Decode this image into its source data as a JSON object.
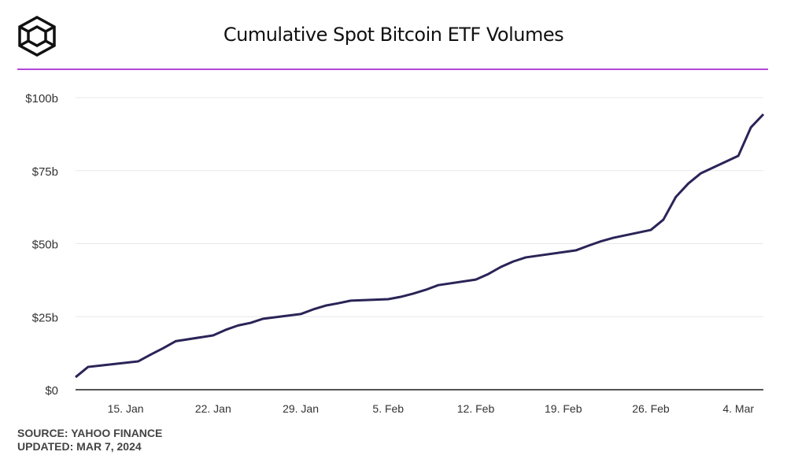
{
  "header": {
    "title": "Cumulative Spot Bitcoin ETF Volumes"
  },
  "footer": {
    "source": "SOURCE: YAHOO FINANCE",
    "updated": "UPDATED: MAR 7, 2024"
  },
  "colors": {
    "line": "#2a2457",
    "accent_rule": "#b347d9",
    "grid": "#e8e8e8"
  },
  "chart_data": {
    "type": "line",
    "title": "Cumulative Spot Bitcoin ETF Volumes",
    "xlabel": "",
    "ylabel": "",
    "ylim": [
      0,
      100
    ],
    "xlim": [
      "2024-01-11",
      "2024-03-06"
    ],
    "grid": true,
    "y_ticks": [
      {
        "value": 0,
        "label": "$0"
      },
      {
        "value": 25,
        "label": "$25b"
      },
      {
        "value": 50,
        "label": "$50b"
      },
      {
        "value": 75,
        "label": "$75b"
      },
      {
        "value": 100,
        "label": "$100b"
      }
    ],
    "x_ticks": [
      {
        "date": "2024-01-15",
        "label": "15. Jan"
      },
      {
        "date": "2024-01-22",
        "label": "22. Jan"
      },
      {
        "date": "2024-01-29",
        "label": "29. Jan"
      },
      {
        "date": "2024-02-05",
        "label": "5. Feb"
      },
      {
        "date": "2024-02-12",
        "label": "12. Feb"
      },
      {
        "date": "2024-02-19",
        "label": "19. Feb"
      },
      {
        "date": "2024-02-26",
        "label": "26. Feb"
      },
      {
        "date": "2024-03-04",
        "label": "4. Mar"
      }
    ],
    "series": [
      {
        "points": [
          [
            "2024-01-11",
            4.3
          ],
          [
            "2024-01-12",
            7.8
          ],
          [
            "2024-01-16",
            9.7
          ],
          [
            "2024-01-17",
            12.0
          ],
          [
            "2024-01-18",
            14.2
          ],
          [
            "2024-01-19",
            16.6
          ],
          [
            "2024-01-22",
            18.6
          ],
          [
            "2024-01-23",
            20.5
          ],
          [
            "2024-01-24",
            22.0
          ],
          [
            "2024-01-25",
            22.9
          ],
          [
            "2024-01-26",
            24.3
          ],
          [
            "2024-01-29",
            25.9
          ],
          [
            "2024-01-30",
            27.5
          ],
          [
            "2024-01-31",
            28.8
          ],
          [
            "2024-02-01",
            29.6
          ],
          [
            "2024-02-02",
            30.5
          ],
          [
            "2024-02-05",
            31.0
          ],
          [
            "2024-02-06",
            31.8
          ],
          [
            "2024-02-07",
            32.9
          ],
          [
            "2024-02-08",
            34.2
          ],
          [
            "2024-02-09",
            35.8
          ],
          [
            "2024-02-12",
            37.7
          ],
          [
            "2024-02-13",
            39.6
          ],
          [
            "2024-02-14",
            42.0
          ],
          [
            "2024-02-15",
            43.9
          ],
          [
            "2024-02-16",
            45.3
          ],
          [
            "2024-02-20",
            47.7
          ],
          [
            "2024-02-21",
            49.3
          ],
          [
            "2024-02-22",
            50.8
          ],
          [
            "2024-02-23",
            52.0
          ],
          [
            "2024-02-26",
            54.7
          ],
          [
            "2024-02-27",
            58.2
          ],
          [
            "2024-02-28",
            66.0
          ],
          [
            "2024-02-29",
            70.6
          ],
          [
            "2024-03-01",
            74.1
          ],
          [
            "2024-03-04",
            80.1
          ],
          [
            "2024-03-05",
            89.8
          ],
          [
            "2024-03-06",
            94.3
          ]
        ]
      }
    ]
  }
}
